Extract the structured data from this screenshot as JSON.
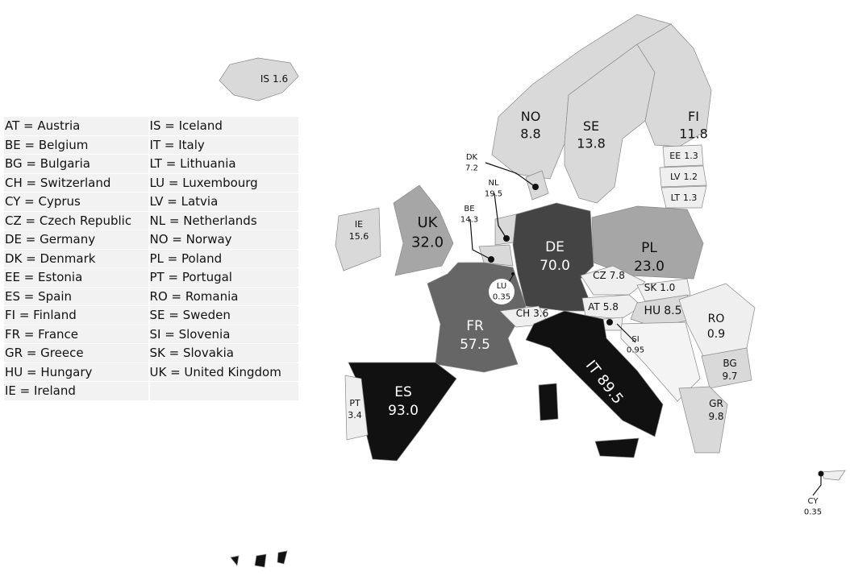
{
  "legend": [
    [
      "AT = Austria",
      "IS = Iceland"
    ],
    [
      "BE = Belgium",
      "IT = Italy"
    ],
    [
      "BG = Bulgaria",
      "LT = Lithuania"
    ],
    [
      "CH = Switzerland",
      "LU = Luxembourg"
    ],
    [
      "CY = Cyprus",
      "LV = Latvia"
    ],
    [
      "CZ = Czech Republic",
      "NL = Netherlands"
    ],
    [
      "DE = Germany",
      "NO = Norway"
    ],
    [
      "DK = Denmark",
      "PL = Poland"
    ],
    [
      "EE = Estonia",
      "PT = Portugal"
    ],
    [
      "ES = Spain",
      "RO = Romania"
    ],
    [
      "FI = Finland",
      "SE = Sweden"
    ],
    [
      "FR = France",
      "SI = Slovenia"
    ],
    [
      "GR = Greece",
      "SK = Slovakia"
    ],
    [
      "HU = Hungary",
      "UK  = United Kingdom"
    ],
    [
      "IE = Ireland",
      ""
    ]
  ],
  "countries": {
    "IS": {
      "code": "IS",
      "value": "1.6"
    },
    "NO": {
      "code": "NO",
      "value": "8.8"
    },
    "SE": {
      "code": "SE",
      "value": "13.8"
    },
    "FI": {
      "code": "FI",
      "value": "11.8"
    },
    "EE": {
      "code": "EE",
      "value": "1.3"
    },
    "LV": {
      "code": "LV",
      "value": "1.2"
    },
    "LT": {
      "code": "LT",
      "value": "1.3"
    },
    "DK": {
      "code": "DK",
      "value": "7.2"
    },
    "NL": {
      "code": "NL",
      "value": "19.5"
    },
    "BE": {
      "code": "BE",
      "value": "14.3"
    },
    "LU": {
      "code": "LU",
      "value": "0.35"
    },
    "IE": {
      "code": "IE",
      "value": "15.6"
    },
    "UK": {
      "code": "UK",
      "value": "32.0"
    },
    "DE": {
      "code": "DE",
      "value": "70.0"
    },
    "PL": {
      "code": "PL",
      "value": "23.0"
    },
    "CZ": {
      "code": "CZ",
      "value": "7.8"
    },
    "SK": {
      "code": "SK",
      "value": "1.0"
    },
    "AT": {
      "code": "AT",
      "value": "5.8"
    },
    "HU": {
      "code": "HU",
      "value": "8.5"
    },
    "CH": {
      "code": "CH",
      "value": "3.6"
    },
    "SI": {
      "code": "SI",
      "value": "0.95"
    },
    "FR": {
      "code": "FR",
      "value": "57.5"
    },
    "IT": {
      "code": "IT",
      "value": "89.5"
    },
    "RO": {
      "code": "RO",
      "value": "0.9"
    },
    "BG": {
      "code": "BG",
      "value": "9.7"
    },
    "GR": {
      "code": "GR",
      "value": "9.8"
    },
    "ES": {
      "code": "ES",
      "value": "93.0"
    },
    "PT": {
      "code": "PT",
      "value": "3.4"
    },
    "CY": {
      "code": "CY",
      "value": "0.35"
    }
  },
  "colors": {
    "darkest": "#111111",
    "dark": "#444444",
    "mid": "#666666",
    "midlight": "#a6a6a6",
    "light": "#d9d9d9",
    "lightest": "#efefef"
  }
}
